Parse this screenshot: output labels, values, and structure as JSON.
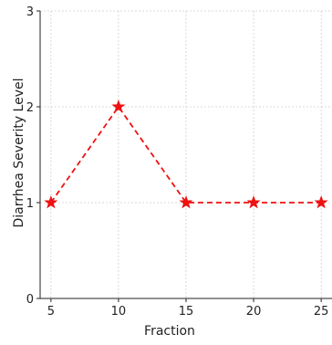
{
  "chart_data": {
    "type": "line",
    "title": "",
    "xlabel": "Fraction",
    "ylabel": "Diarrhea Severity Level",
    "x": [
      5,
      10,
      15,
      20,
      25
    ],
    "series": [
      {
        "values": [
          1,
          2,
          1,
          1,
          1
        ],
        "color": "#ee1111",
        "line_style": "dashed",
        "marker": "star"
      }
    ],
    "xticks": [
      "5",
      "10",
      "15",
      "20",
      "25"
    ],
    "yticks": [
      "0",
      "1",
      "2",
      "3"
    ],
    "xlim": [
      4.2,
      25.8
    ],
    "ylim": [
      0,
      3
    ],
    "grid": true
  }
}
